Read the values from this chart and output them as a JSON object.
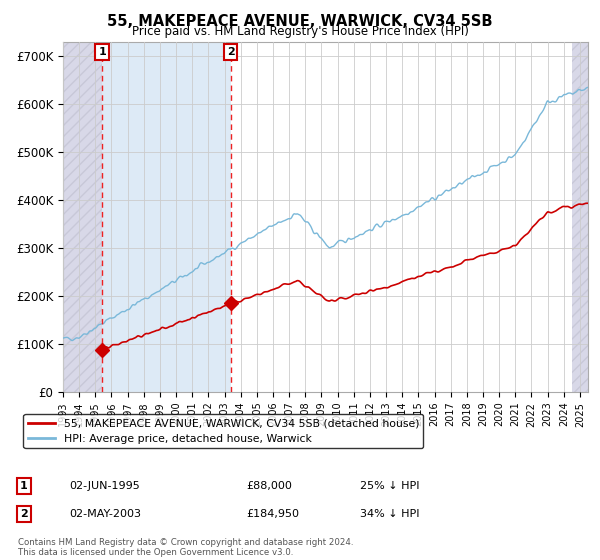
{
  "title": "55, MAKEPEACE AVENUE, WARWICK, CV34 5SB",
  "subtitle": "Price paid vs. HM Land Registry's House Price Index (HPI)",
  "ylim": [
    0,
    730000
  ],
  "yticks": [
    0,
    100000,
    200000,
    300000,
    400000,
    500000,
    600000,
    700000
  ],
  "ytick_labels": [
    "£0",
    "£100K",
    "£200K",
    "£300K",
    "£400K",
    "£500K",
    "£600K",
    "£700K"
  ],
  "xlim_left": 1993.0,
  "xlim_right": 2025.5,
  "sale1_x": 1995.42,
  "sale1_price": 88000,
  "sale2_x": 2003.37,
  "sale2_price": 184950,
  "hpi_color": "#7ab8d9",
  "price_color": "#cc0000",
  "vline_color": "#ee2222",
  "hatch_color": "#c8c8d8",
  "hatch_face": "#d8d8e8",
  "blue_shade_color": "#dae8f5",
  "legend_entry1": "55, MAKEPEACE AVENUE, WARWICK, CV34 5SB (detached house)",
  "legend_entry2": "HPI: Average price, detached house, Warwick",
  "footer": "Contains HM Land Registry data © Crown copyright and database right 2024.\nThis data is licensed under the Open Government Licence v3.0.",
  "table_row1": [
    "1",
    "02-JUN-1995",
    "£88,000",
    "25% ↓ HPI"
  ],
  "table_row2": [
    "2",
    "02-MAY-2003",
    "£184,950",
    "34% ↓ HPI"
  ]
}
